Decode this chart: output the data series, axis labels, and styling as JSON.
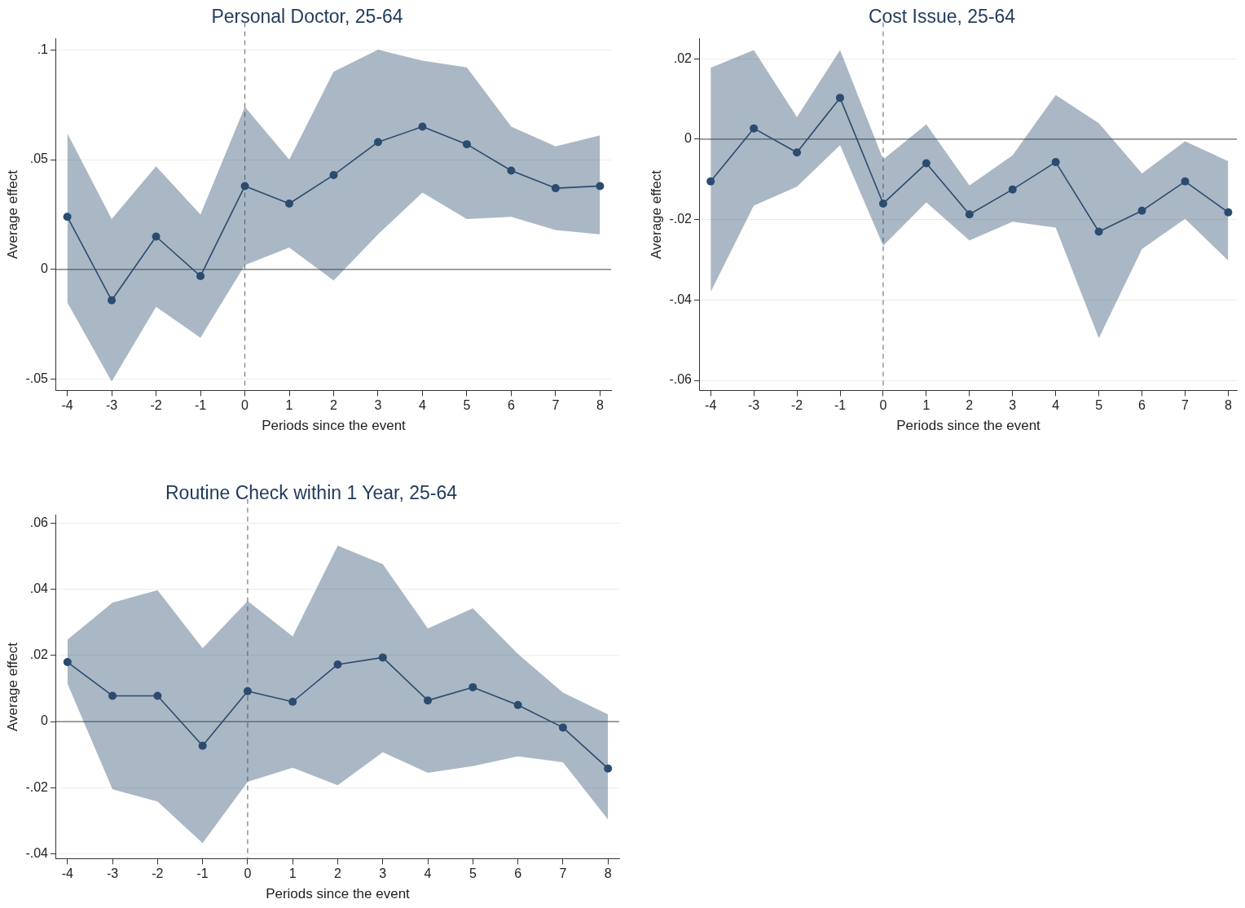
{
  "chart_data": [
    {
      "type": "line",
      "title": "Personal Doctor, 25-64",
      "xlabel": "Periods since the event",
      "ylabel": "Average effect",
      "x": [
        -4,
        -3,
        -2,
        -1,
        0,
        1,
        2,
        3,
        4,
        5,
        6,
        7,
        8
      ],
      "xlim": [
        -4.25,
        8.25
      ],
      "xticks": [
        -4,
        -3,
        -2,
        -1,
        0,
        1,
        2,
        3,
        4,
        5,
        6,
        7,
        8
      ],
      "ylim": [
        -0.055,
        0.105
      ],
      "yticks": [
        {
          "value": -0.05,
          "label": "-.05"
        },
        {
          "value": 0,
          "label": "0"
        },
        {
          "value": 0.05,
          "label": ".05"
        },
        {
          "value": 0.1,
          "label": ".1"
        }
      ],
      "grid": "y",
      "marker": "circle",
      "line_style": "solid",
      "legend": false,
      "series": [
        {
          "color": "#2b4c6f",
          "values": [
            0.024,
            -0.014,
            0.015,
            -0.003,
            0.038,
            0.03,
            0.043,
            0.058,
            0.065,
            0.057,
            0.045,
            0.037,
            0.038
          ],
          "lower": [
            -0.015,
            -0.051,
            -0.017,
            -0.031,
            0.002,
            0.01,
            -0.005,
            0.016,
            0.035,
            0.023,
            0.024,
            0.018,
            0.016
          ],
          "upper": [
            0.062,
            0.023,
            0.047,
            0.025,
            0.074,
            0.05,
            0.09,
            0.1,
            0.095,
            0.092,
            0.065,
            0.056,
            0.061
          ]
        }
      ],
      "ref_lines": [
        {
          "axis": "y",
          "value": 0,
          "color": "#6b6b6b",
          "line_style": "solid"
        },
        {
          "axis": "x",
          "value": 0,
          "color": "#7a7a7a",
          "line_style": "dashed"
        }
      ]
    },
    {
      "type": "line",
      "title": "Cost Issue, 25-64",
      "xlabel": "Periods since the event",
      "ylabel": "Average effect",
      "x": [
        -4,
        -3,
        -2,
        -1,
        0,
        1,
        2,
        3,
        4,
        5,
        6,
        7,
        8
      ],
      "xlim": [
        -4.25,
        8.2
      ],
      "xticks": [
        -4,
        -3,
        -2,
        -1,
        0,
        1,
        2,
        3,
        4,
        5,
        6,
        7,
        8
      ],
      "ylim": [
        -0.0625,
        0.025
      ],
      "yticks": [
        {
          "value": -0.06,
          "label": "-.06"
        },
        {
          "value": -0.04,
          "label": "-.04"
        },
        {
          "value": -0.02,
          "label": "-.02"
        },
        {
          "value": 0,
          "label": "0"
        },
        {
          "value": 0.02,
          "label": ".02"
        }
      ],
      "grid": "y",
      "marker": "circle",
      "line_style": "solid",
      "legend": false,
      "series": [
        {
          "color": "#2b4c6f",
          "values": [
            -0.0105,
            0.0027,
            -0.0033,
            0.0103,
            -0.016,
            -0.006,
            -0.0187,
            -0.0125,
            -0.0057,
            -0.023,
            -0.0178,
            -0.0105,
            -0.0182
          ],
          "lower": [
            -0.038,
            -0.0165,
            -0.0118,
            -0.0015,
            -0.0265,
            -0.0157,
            -0.0252,
            -0.0205,
            -0.022,
            -0.0495,
            -0.0273,
            -0.0198,
            -0.0302
          ],
          "upper": [
            0.0178,
            0.0222,
            0.0055,
            0.0222,
            -0.005,
            0.0037,
            -0.0115,
            -0.004,
            0.011,
            0.004,
            -0.0085,
            -0.0005,
            -0.0055
          ]
        }
      ],
      "ref_lines": [
        {
          "axis": "y",
          "value": 0,
          "color": "#6b6b6b",
          "line_style": "solid"
        },
        {
          "axis": "x",
          "value": 0,
          "color": "#7a7a7a",
          "line_style": "dashed"
        }
      ]
    },
    {
      "type": "line",
      "title": "Routine Check within 1 Year, 25-64",
      "xlabel": "Periods since the event",
      "ylabel": "Average effect",
      "x": [
        -4,
        -3,
        -2,
        -1,
        0,
        1,
        2,
        3,
        4,
        5,
        6,
        7,
        8
      ],
      "xlim": [
        -4.25,
        8.25
      ],
      "xticks": [
        -4,
        -3,
        -2,
        -1,
        0,
        1,
        2,
        3,
        4,
        5,
        6,
        7,
        8
      ],
      "ylim": [
        -0.0415,
        0.0625
      ],
      "yticks": [
        {
          "value": -0.04,
          "label": "-.04"
        },
        {
          "value": -0.02,
          "label": "-.02"
        },
        {
          "value": 0,
          "label": "0"
        },
        {
          "value": 0.02,
          "label": ".02"
        },
        {
          "value": 0.04,
          "label": ".04"
        },
        {
          "value": 0.06,
          "label": ".06"
        }
      ],
      "grid": "y",
      "marker": "circle",
      "line_style": "solid",
      "legend": false,
      "series": [
        {
          "color": "#2b4c6f",
          "values": [
            0.018,
            0.0078,
            0.0078,
            -0.0073,
            0.0092,
            0.006,
            0.0173,
            0.0194,
            0.0064,
            0.0104,
            0.005,
            -0.0018,
            -0.0142
          ],
          "lower": [
            0.0115,
            -0.0205,
            -0.0242,
            -0.0368,
            -0.0182,
            -0.014,
            -0.0193,
            -0.0093,
            -0.0155,
            -0.0135,
            -0.0105,
            -0.0123,
            -0.0296
          ],
          "upper": [
            0.0248,
            0.036,
            0.0398,
            0.0222,
            0.0365,
            0.0258,
            0.0533,
            0.0477,
            0.0282,
            0.0343,
            0.0205,
            0.0088,
            0.0022
          ]
        }
      ],
      "ref_lines": [
        {
          "axis": "y",
          "value": 0,
          "color": "#6b6b6b",
          "line_style": "solid"
        },
        {
          "axis": "x",
          "value": 0,
          "color": "#7a7a7a",
          "line_style": "dashed"
        }
      ]
    }
  ]
}
